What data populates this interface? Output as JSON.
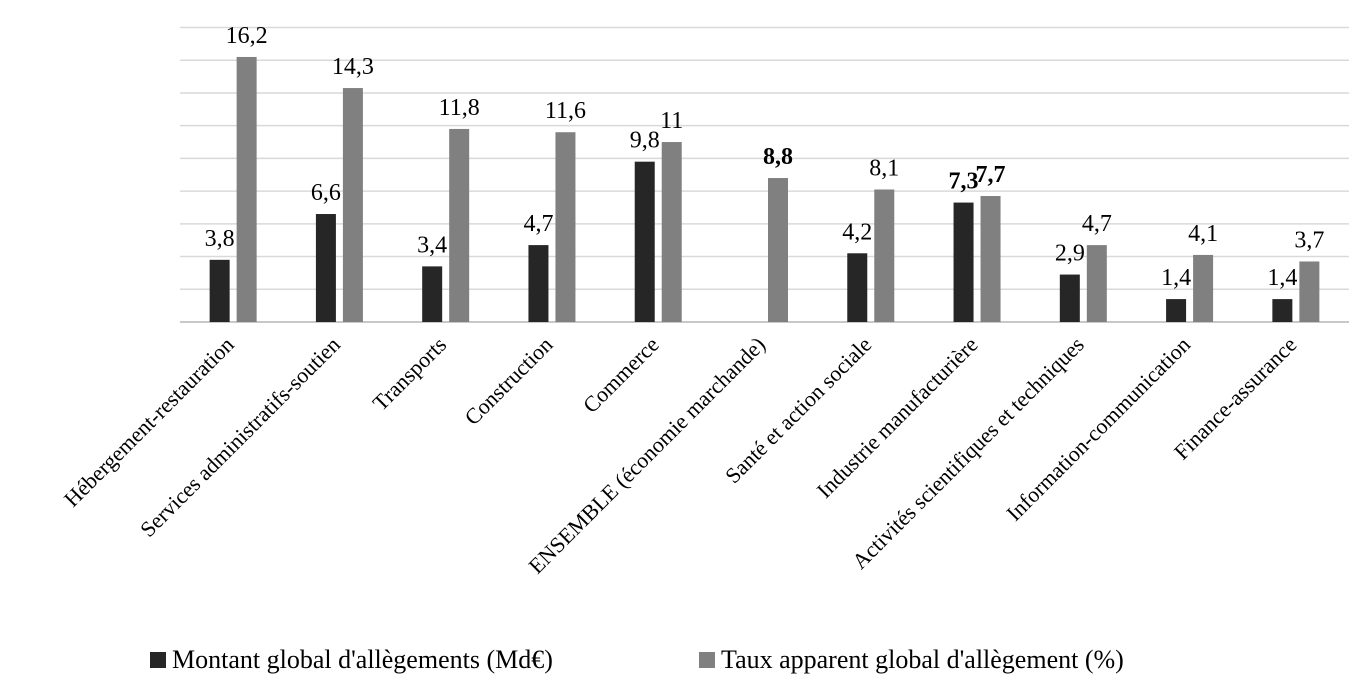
{
  "chart_data": {
    "type": "bar",
    "categories": [
      "Hébergement-restauration",
      "Services administratifs-soutien",
      "Transports",
      "Construction",
      "Commerce",
      "ENSEMBLE (économie marchande)",
      "Santé et action sociale",
      "Industrie manufacturière",
      "Activités scientifiques et techniques",
      "Information-communication",
      "Finance-assurance"
    ],
    "series": [
      {
        "name": "Montant global d'allègements (Md€)",
        "color": "#262626",
        "values": [
          3.8,
          6.6,
          3.4,
          4.7,
          9.8,
          null,
          4.2,
          7.3,
          2.9,
          1.4,
          1.4
        ],
        "labels": [
          "3,8",
          "6,6",
          "3,4",
          "4,7",
          "9,8",
          "",
          "4,2",
          "7,3",
          "2,9",
          "1,4",
          "1,4"
        ],
        "bold": [
          false,
          false,
          false,
          false,
          false,
          false,
          false,
          true,
          false,
          false,
          false
        ]
      },
      {
        "name": "Taux apparent global d'allègement (%)",
        "color": "#808080",
        "values": [
          16.2,
          14.3,
          11.8,
          11.6,
          11,
          8.8,
          8.1,
          7.7,
          4.7,
          4.1,
          3.7
        ],
        "labels": [
          "16,2",
          "14,3",
          "11,8",
          "11,6",
          "11",
          "8,8",
          "8,1",
          "7,7",
          "4,7",
          "4,1",
          "3,7"
        ],
        "bold": [
          false,
          false,
          false,
          false,
          false,
          true,
          false,
          true,
          false,
          false,
          false
        ]
      }
    ],
    "ylim": [
      0,
      18
    ],
    "grid": true,
    "legend_position": "bottom"
  }
}
